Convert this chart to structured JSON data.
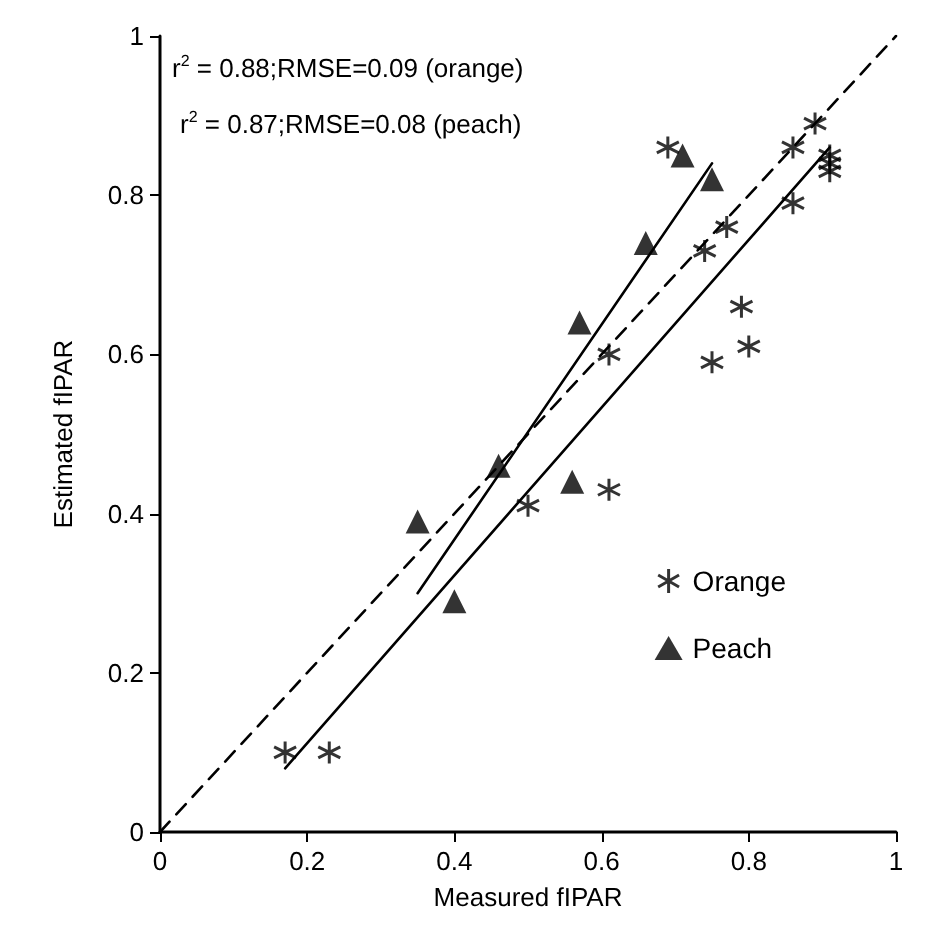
{
  "chart_data": {
    "type": "scatter",
    "xlabel": "Measured fIPAR",
    "ylabel": "Estimated fIPAR",
    "xlim": [
      0,
      1
    ],
    "ylim": [
      0,
      1
    ],
    "xticks": [
      0,
      0.2,
      0.4,
      0.6,
      0.8,
      1
    ],
    "yticks": [
      0,
      0.2,
      0.4,
      0.6,
      0.8,
      1
    ],
    "grid": false,
    "legend": "bottom right",
    "annotations": [
      "r$^{2}$ = 0.88;RMSE=0.09 (orange)",
      "r$^{2}$ = 0.87;RMSE=0.08 (peach)"
    ],
    "series": [
      {
        "name": "Orange",
        "color": "#000000",
        "marker": "cross",
        "x": [
          0.17,
          0.23,
          0.5,
          0.61,
          0.61,
          0.69,
          0.74,
          0.75,
          0.77,
          0.79,
          0.8,
          0.86,
          0.86,
          0.89,
          0.91,
          0.91,
          0.91
        ],
        "values": [
          0.1,
          0.1,
          0.41,
          0.43,
          0.6,
          0.86,
          0.73,
          0.59,
          0.76,
          0.66,
          0.61,
          0.79,
          0.86,
          0.89,
          0.85,
          0.83,
          0.84
        ]
      },
      {
        "name": "Peach",
        "color": "#000000",
        "marker": "triangle",
        "x": [
          0.35,
          0.4,
          0.46,
          0.56,
          0.57,
          0.66,
          0.71,
          0.75
        ],
        "values": [
          0.39,
          0.29,
          0.46,
          0.44,
          0.64,
          0.74,
          0.85,
          0.82
        ]
      },
      {
        "type": "line",
        "color": "#000000",
        "line_style": "solid",
        "marker": "none",
        "x": [
          0.17,
          0.91
        ],
        "values": [
          0.08,
          0.86
        ]
      },
      {
        "type": "line",
        "color": "#000000",
        "line_style": "solid",
        "marker": "none",
        "x": [
          0.35,
          0.75
        ],
        "values": [
          0.3,
          0.84
        ]
      },
      {
        "type": "line",
        "color": "#000000",
        "line_style": "dashed",
        "marker": "none",
        "x": [
          0,
          1
        ],
        "values": [
          0,
          1
        ]
      }
    ]
  }
}
